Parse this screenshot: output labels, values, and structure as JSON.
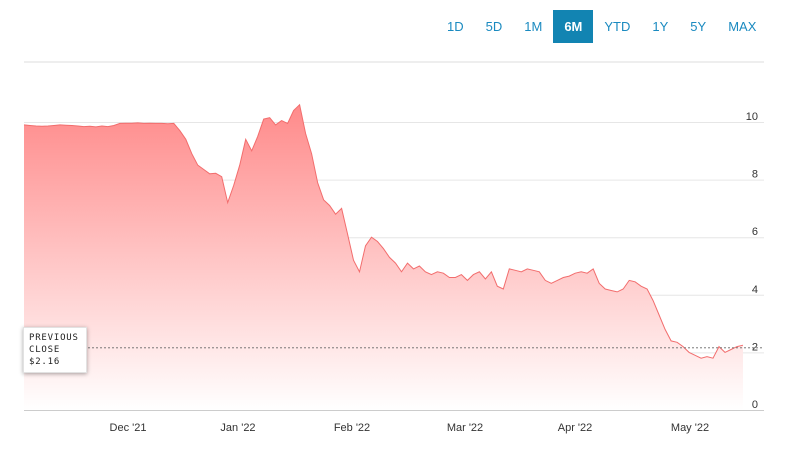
{
  "range_tabs": [
    {
      "label": "1D",
      "active": false
    },
    {
      "label": "5D",
      "active": false
    },
    {
      "label": "1M",
      "active": false
    },
    {
      "label": "6M",
      "active": true
    },
    {
      "label": "YTD",
      "active": false
    },
    {
      "label": "1Y",
      "active": false
    },
    {
      "label": "5Y",
      "active": false
    },
    {
      "label": "MAX",
      "active": false
    }
  ],
  "tooltip": {
    "line1": "PREVIOUS",
    "line2": "CLOSE",
    "value": "$2.16"
  },
  "colors": {
    "area_top": "#ff8a8a",
    "area_bottom": "#ffffff",
    "line": "#f26d6d",
    "accent": "#1284b2"
  },
  "chart_data": {
    "type": "area",
    "x_tick_labels": [
      "Dec '21",
      "Jan '22",
      "Feb '22",
      "Mar '22",
      "Apr '22",
      "May '22"
    ],
    "y_ticks": [
      0,
      2,
      4,
      6,
      8,
      10
    ],
    "ylim": [
      0,
      10.8
    ],
    "previous_close": 2.16,
    "grid": true,
    "values": [
      9.9,
      9.88,
      9.86,
      9.85,
      9.86,
      9.88,
      9.9,
      9.89,
      9.88,
      9.86,
      9.84,
      9.85,
      9.83,
      9.86,
      9.84,
      9.88,
      9.95,
      9.96,
      9.96,
      9.97,
      9.95,
      9.96,
      9.95,
      9.95,
      9.94,
      9.95,
      9.7,
      9.4,
      8.9,
      8.5,
      8.35,
      8.2,
      8.22,
      8.1,
      7.2,
      7.8,
      8.5,
      9.4,
      9.0,
      9.5,
      10.1,
      10.15,
      9.9,
      10.05,
      9.95,
      10.4,
      10.6,
      9.6,
      8.9,
      7.9,
      7.3,
      7.1,
      6.8,
      7.0,
      6.1,
      5.2,
      4.8,
      5.7,
      6.0,
      5.85,
      5.6,
      5.3,
      5.1,
      4.8,
      5.1,
      4.9,
      5.0,
      4.8,
      4.7,
      4.8,
      4.75,
      4.6,
      4.6,
      4.7,
      4.5,
      4.7,
      4.8,
      4.55,
      4.8,
      4.3,
      4.2,
      4.9,
      4.85,
      4.8,
      4.9,
      4.85,
      4.8,
      4.5,
      4.4,
      4.5,
      4.6,
      4.65,
      4.75,
      4.8,
      4.75,
      4.9,
      4.4,
      4.2,
      4.15,
      4.1,
      4.2,
      4.5,
      4.45,
      4.3,
      4.2,
      3.8,
      3.3,
      2.8,
      2.4,
      2.35,
      2.2,
      2.0,
      1.9,
      1.8,
      1.85,
      1.8,
      2.2,
      2.0,
      2.1,
      2.2,
      2.25
    ]
  }
}
